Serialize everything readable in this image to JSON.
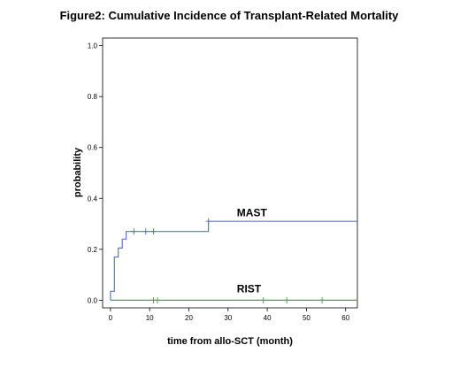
{
  "chart_data": {
    "type": "line",
    "title": "Figure2: Cumulative Incidence of Transplant-Related Mortality",
    "xlabel": "time from allo-SCT (month)",
    "ylabel": "probability",
    "xlim": [
      -2,
      63
    ],
    "ylim": [
      -0.03,
      1.03
    ],
    "x_ticks": [
      0,
      10,
      20,
      30,
      40,
      50,
      60
    ],
    "y_ticks": [
      0.0,
      0.2,
      0.4,
      0.6,
      0.8,
      1.0
    ],
    "y_tick_labels": [
      "0.0",
      "0.2",
      "0.4",
      "0.6",
      "0.8",
      "1.0"
    ],
    "step": true,
    "series": [
      {
        "name": "MAST",
        "color": "#5b78c4",
        "steps": [
          [
            0,
            0
          ],
          [
            0,
            0.035
          ],
          [
            1,
            0.035
          ],
          [
            1,
            0.17
          ],
          [
            2,
            0.17
          ],
          [
            2,
            0.205
          ],
          [
            3,
            0.205
          ],
          [
            3,
            0.24
          ],
          [
            4,
            0.24
          ],
          [
            4,
            0.27
          ],
          [
            25,
            0.27
          ],
          [
            25,
            0.31
          ],
          [
            63,
            0.31
          ]
        ],
        "censored": [
          [
            6,
            0.27
          ],
          [
            9,
            0.27
          ],
          [
            11,
            0.27
          ],
          [
            25,
            0.31
          ]
        ]
      },
      {
        "name": "RIST",
        "color": "#3cb043",
        "steps": [
          [
            0,
            0
          ],
          [
            63,
            0
          ]
        ],
        "censored": [
          [
            11,
            0
          ],
          [
            12,
            0
          ],
          [
            39,
            0
          ],
          [
            45,
            0
          ],
          [
            54,
            0
          ]
        ]
      }
    ],
    "series_label_positions": [
      [
        30,
        0.33
      ],
      [
        30,
        0.03
      ]
    ]
  }
}
